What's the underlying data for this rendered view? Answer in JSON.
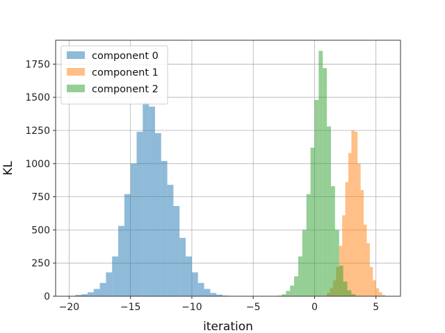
{
  "chart_data": {
    "type": "bar",
    "subtype": "histogram",
    "xlabel": "iteration",
    "ylabel": "KL",
    "xlim": [
      -21.1,
      7.0
    ],
    "ylim": [
      0,
      1930
    ],
    "grid": true,
    "legend_position": "upper-left",
    "x_ticks": [
      -20,
      -15,
      -10,
      -5,
      0,
      5
    ],
    "x_tick_labels": [
      "−20",
      "−15",
      "−10",
      "−5",
      "0",
      "5"
    ],
    "y_ticks": [
      0,
      250,
      500,
      750,
      1000,
      1250,
      1500,
      1750
    ],
    "y_tick_labels": [
      "0",
      "250",
      "500",
      "750",
      "1000",
      "1250",
      "1500",
      "1750"
    ],
    "series": [
      {
        "name": "component 0",
        "color": "#1f77b4",
        "alpha": 0.5,
        "bin_start": -20.0,
        "bin_width": 0.5,
        "counts": [
          3,
          10,
          15,
          30,
          55,
          100,
          180,
          300,
          530,
          770,
          1000,
          1240,
          1460,
          1430,
          1230,
          1020,
          840,
          680,
          440,
          300,
          180,
          100,
          55,
          25,
          12,
          5
        ]
      },
      {
        "name": "component 1",
        "color": "#ff7f0e",
        "alpha": 0.5,
        "bin_start": 1.0,
        "bin_width": 0.25,
        "counts": [
          25,
          60,
          120,
          220,
          380,
          610,
          860,
          1080,
          1250,
          1240,
          1000,
          800,
          540,
          400,
          220,
          120,
          60,
          30,
          10
        ]
      },
      {
        "name": "component 2",
        "color": "#2ca02c",
        "alpha": 0.5,
        "bin_start": -3.0,
        "bin_width": 0.3333,
        "counts": [
          5,
          15,
          40,
          80,
          150,
          300,
          500,
          770,
          1120,
          1480,
          1850,
          1720,
          1280,
          830,
          500,
          230,
          110,
          45,
          15
        ]
      }
    ]
  }
}
